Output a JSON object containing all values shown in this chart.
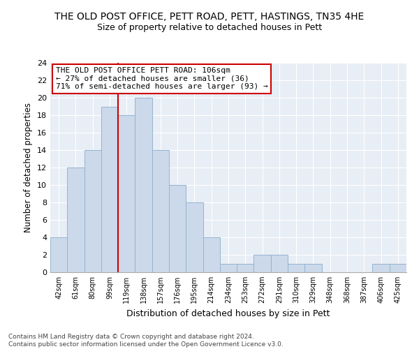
{
  "title1": "THE OLD POST OFFICE, PETT ROAD, PETT, HASTINGS, TN35 4HE",
  "title2": "Size of property relative to detached houses in Pett",
  "xlabel": "Distribution of detached houses by size in Pett",
  "ylabel": "Number of detached properties",
  "bin_labels": [
    "42sqm",
    "61sqm",
    "80sqm",
    "99sqm",
    "119sqm",
    "138sqm",
    "157sqm",
    "176sqm",
    "195sqm",
    "214sqm",
    "234sqm",
    "253sqm",
    "272sqm",
    "291sqm",
    "310sqm",
    "329sqm",
    "348sqm",
    "368sqm",
    "387sqm",
    "406sqm",
    "425sqm"
  ],
  "bin_counts": [
    4,
    12,
    14,
    19,
    18,
    20,
    14,
    10,
    8,
    4,
    1,
    1,
    2,
    2,
    1,
    1,
    0,
    0,
    0,
    1,
    1
  ],
  "bar_color": "#ccd9ea",
  "bar_edge_color": "#92b4d0",
  "property_label": "THE OLD POST OFFICE PETT ROAD: 106sqm",
  "annotation_line1": "← 27% of detached houses are smaller (36)",
  "annotation_line2": "71% of semi-detached houses are larger (93) →",
  "vline_color": "#cc0000",
  "vline_bin_index": 3.5,
  "annotation_box_color": "#ffffff",
  "annotation_box_edgecolor": "#cc0000",
  "footer": "Contains HM Land Registry data © Crown copyright and database right 2024.\nContains public sector information licensed under the Open Government Licence v3.0.",
  "ylim": [
    0,
    24
  ],
  "yticks": [
    0,
    2,
    4,
    6,
    8,
    10,
    12,
    14,
    16,
    18,
    20,
    22,
    24
  ],
  "bg_color": "#e8eef5"
}
